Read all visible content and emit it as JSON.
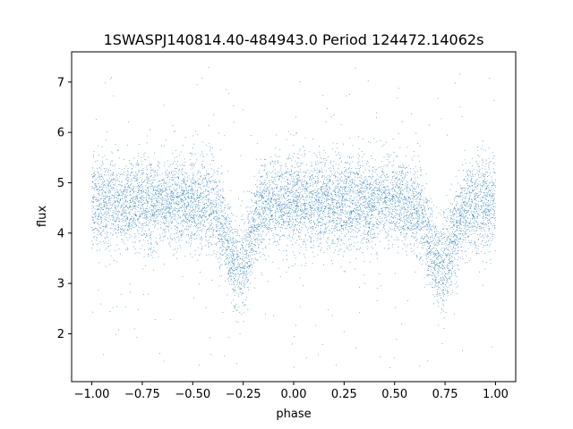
{
  "chart_data": {
    "type": "scatter",
    "title": "1SWASPJ140814.40-484943.0 Period 124472.14062s",
    "xlabel": "phase",
    "ylabel": "flux",
    "xlim": [
      -1.1,
      1.1
    ],
    "ylim": [
      1.05,
      7.6
    ],
    "x_ticks": [
      -1.0,
      -0.75,
      -0.5,
      -0.25,
      0.0,
      0.25,
      0.5,
      0.75,
      1.0
    ],
    "x_tick_labels": [
      "−1.00",
      "−0.75",
      "−0.50",
      "−0.25",
      "0.00",
      "0.25",
      "0.50",
      "0.75",
      "1.00"
    ],
    "y_ticks": [
      2,
      3,
      4,
      5,
      6,
      7
    ],
    "y_tick_labels": [
      "2",
      "3",
      "4",
      "5",
      "6",
      "7"
    ],
    "grid": false,
    "marker_color": "#1f77b4",
    "phase_range": [
      -1.0,
      1.0
    ],
    "baseline_flux": 4.6,
    "flux_scatter": 0.45,
    "eclipse_minima": [
      {
        "phase": -0.27,
        "flux": 3.3
      },
      {
        "phase": 0.73,
        "flux": 3.3
      }
    ],
    "eclipse_half_width": 0.08,
    "outlier_flux_range": [
      1.3,
      7.3
    ]
  }
}
